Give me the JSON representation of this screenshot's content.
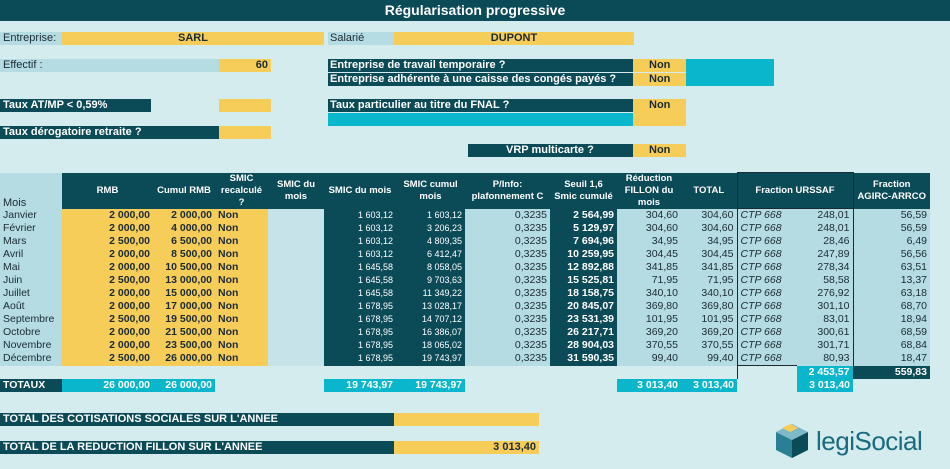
{
  "title": "Régularisation progressive",
  "entreprise": {
    "label": "Entreprise:",
    "value": "SARL"
  },
  "salarie": {
    "label": "Salarié",
    "value": "DUPONT"
  },
  "effectif": {
    "label": "Effectif :",
    "value": "60"
  },
  "travail_temporaire": {
    "label": "Entreprise de travail temporaire ?",
    "value": "Non"
  },
  "conges_payes": {
    "label": "Entreprise adhérente à une caisse des congés payés ?",
    "value": "Non"
  },
  "taux_atmp": {
    "label": "Taux AT/MP < 0,59%",
    "value": ""
  },
  "taux_fnal": {
    "label": "Taux particulier au titre du FNAL ?",
    "value": "Non"
  },
  "taux_derogatoire": {
    "label": "Taux dérogatoire retraite ?",
    "value": ""
  },
  "vrp": {
    "label": "VRP multicarte ?",
    "value": "Non"
  },
  "headers": {
    "mois": "Mois",
    "rmb": "RMB",
    "cumul_rmb": "Cumul RMB",
    "smic_recalcule": "SMIC recalculé ?",
    "smic_du_mois_1": "SMIC du mois",
    "smic_du_mois_2": "SMIC du mois",
    "smic_cumul": "SMIC cumul mois",
    "p_info": "P/Info: plafonnement C",
    "seuil": "Seuil 1,6 Smic cumulé",
    "reduction": "Réduction FILLON du mois",
    "total": "TOTAL",
    "fraction_urssaf": "Fraction URSSAF",
    "fraction_agirc": "Fraction AGIRC-ARRCO"
  },
  "rows": [
    {
      "mois": "Janvier",
      "rmb": "2 000,00",
      "cumul": "2 000,00",
      "smic_r": "Non",
      "smic_m": "1 603,12",
      "smic_c": "1 603,12",
      "p": "0,3235",
      "seuil": "2 564,99",
      "red": "304,60",
      "tot": "304,60",
      "ctp": "CTP 668",
      "urs": "248,01",
      "agi": "56,59"
    },
    {
      "mois": "Février",
      "rmb": "2 000,00",
      "cumul": "4 000,00",
      "smic_r": "Non",
      "smic_m": "1 603,12",
      "smic_c": "3 206,23",
      "p": "0,3235",
      "seuil": "5 129,97",
      "red": "304,60",
      "tot": "304,60",
      "ctp": "CTP 668",
      "urs": "248,01",
      "agi": "56,59"
    },
    {
      "mois": "Mars",
      "rmb": "2 500,00",
      "cumul": "6 500,00",
      "smic_r": "Non",
      "smic_m": "1 603,12",
      "smic_c": "4 809,35",
      "p": "0,3235",
      "seuil": "7 694,96",
      "red": "34,95",
      "tot": "34,95",
      "ctp": "CTP 668",
      "urs": "28,46",
      "agi": "6,49"
    },
    {
      "mois": "Avril",
      "rmb": "2 000,00",
      "cumul": "8 500,00",
      "smic_r": "Non",
      "smic_m": "1 603,12",
      "smic_c": "6 412,47",
      "p": "0,3235",
      "seuil": "10 259,95",
      "red": "304,45",
      "tot": "304,45",
      "ctp": "CTP 668",
      "urs": "247,89",
      "agi": "56,56"
    },
    {
      "mois": "Mai",
      "rmb": "2 000,00",
      "cumul": "10 500,00",
      "smic_r": "Non",
      "smic_m": "1 645,58",
      "smic_c": "8 058,05",
      "p": "0,3235",
      "seuil": "12 892,88",
      "red": "341,85",
      "tot": "341,85",
      "ctp": "CTP 668",
      "urs": "278,34",
      "agi": "63,51"
    },
    {
      "mois": "Juin",
      "rmb": "2 500,00",
      "cumul": "13 000,00",
      "smic_r": "Non",
      "smic_m": "1 645,58",
      "smic_c": "9 703,63",
      "p": "0,3235",
      "seuil": "15 525,81",
      "red": "71,95",
      "tot": "71,95",
      "ctp": "CTP 668",
      "urs": "58,58",
      "agi": "13,37"
    },
    {
      "mois": "Juillet",
      "rmb": "2 000,00",
      "cumul": "15 000,00",
      "smic_r": "Non",
      "smic_m": "1 645,58",
      "smic_c": "11 349,22",
      "p": "0,3235",
      "seuil": "18 158,75",
      "red": "340,10",
      "tot": "340,10",
      "ctp": "CTP 668",
      "urs": "276,92",
      "agi": "63,18"
    },
    {
      "mois": "Août",
      "rmb": "2 000,00",
      "cumul": "17 000,00",
      "smic_r": "Non",
      "smic_m": "1 678,95",
      "smic_c": "13 028,17",
      "p": "0,3235",
      "seuil": "20 845,07",
      "red": "369,80",
      "tot": "369,80",
      "ctp": "CTP 668",
      "urs": "301,10",
      "agi": "68,70"
    },
    {
      "mois": "Septembre",
      "rmb": "2 500,00",
      "cumul": "19 500,00",
      "smic_r": "Non",
      "smic_m": "1 678,95",
      "smic_c": "14 707,12",
      "p": "0,3235",
      "seuil": "23 531,39",
      "red": "101,95",
      "tot": "101,95",
      "ctp": "CTP 668",
      "urs": "83,01",
      "agi": "18,94"
    },
    {
      "mois": "Octobre",
      "rmb": "2 000,00",
      "cumul": "21 500,00",
      "smic_r": "Non",
      "smic_m": "1 678,95",
      "smic_c": "16 386,07",
      "p": "0,3235",
      "seuil": "26 217,71",
      "red": "369,20",
      "tot": "369,20",
      "ctp": "CTP 668",
      "urs": "300,61",
      "agi": "68,59"
    },
    {
      "mois": "Novembre",
      "rmb": "2 000,00",
      "cumul": "23 500,00",
      "smic_r": "Non",
      "smic_m": "1 678,95",
      "smic_c": "18 065,02",
      "p": "0,3235",
      "seuil": "28 904,03",
      "red": "370,55",
      "tot": "370,55",
      "ctp": "CTP 668",
      "urs": "301,71",
      "agi": "68,84"
    },
    {
      "mois": "Décembre",
      "rmb": "2 500,00",
      "cumul": "26 000,00",
      "smic_r": "Non",
      "smic_m": "1 678,95",
      "smic_c": "19 743,97",
      "p": "0,3235",
      "seuil": "31 590,35",
      "red": "99,40",
      "tot": "99,40",
      "ctp": "CTP 668",
      "urs": "80,93",
      "agi": "18,47"
    }
  ],
  "fraction_totals": {
    "urssaf": "2 453,57",
    "agirc": "559,83"
  },
  "totaux": {
    "label": "TOTAUX",
    "rmb": "26 000,00",
    "cumul": "26 000,00",
    "smic_m": "19 743,97",
    "smic_c": "19 743,97",
    "red": "3 013,40",
    "tot": "3 013,40",
    "urs": "3 013,40"
  },
  "total_cotisations": {
    "label": "TOTAL DES COTISATIONS SOCIALES SUR L'ANNEE",
    "value": ""
  },
  "total_reduction": {
    "label": "TOTAL DE LA REDUCTION FILLON SUR L'ANNEE",
    "value": "3 013,40"
  },
  "logo": {
    "text": "legiSocial"
  }
}
